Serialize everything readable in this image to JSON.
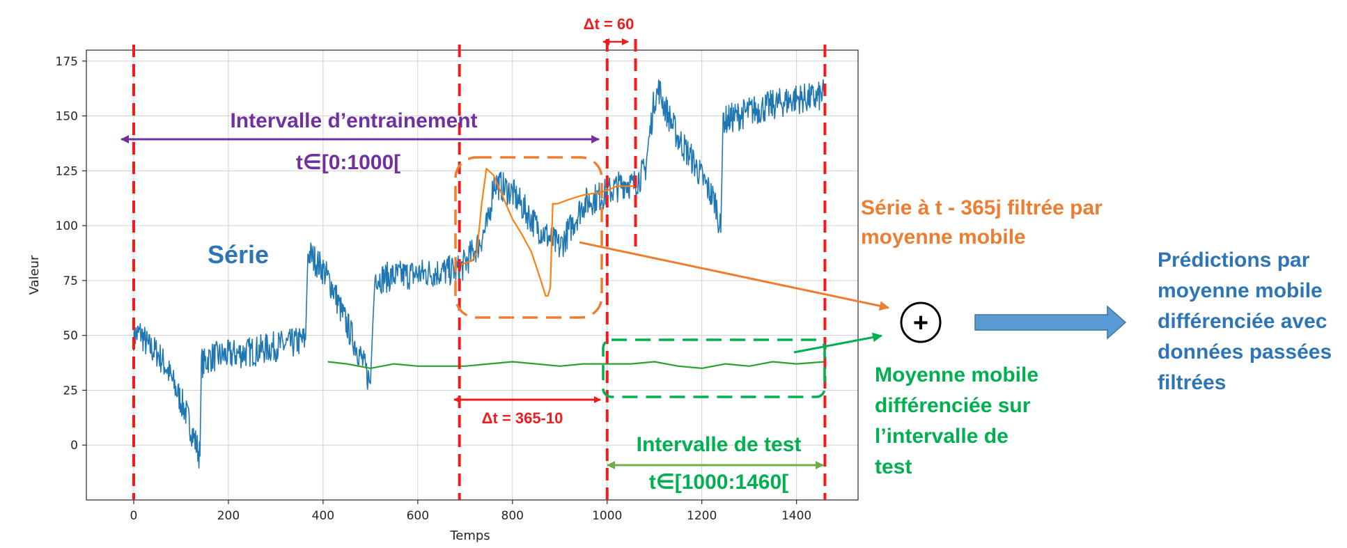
{
  "chart_data": {
    "type": "line",
    "title": "",
    "xlabel": "Temps",
    "ylabel": "Valeur",
    "xlim": [
      -100,
      1530
    ],
    "ylim": [
      -25,
      180
    ],
    "xticks": [
      0,
      200,
      400,
      600,
      800,
      1000,
      1200,
      1400
    ],
    "yticks": [
      0,
      25,
      50,
      75,
      100,
      125,
      150,
      175
    ],
    "grid": true,
    "series": [
      {
        "color": "#1f77b4",
        "x": [
          0,
          15,
          30,
          50,
          70,
          90,
          110,
          125,
          140,
          143,
          148,
          160,
          200,
          260,
          300,
          330,
          363,
          368,
          380,
          400,
          420,
          440,
          460,
          480,
          500,
          505,
          510,
          520,
          550,
          600,
          650,
          690,
          730,
          750,
          760,
          800,
          850,
          900,
          950,
          1000,
          1040,
          1055,
          1060,
          1080,
          1100,
          1110,
          1120,
          1150,
          1180,
          1210,
          1230,
          1240,
          1245,
          1250,
          1300,
          1350,
          1400,
          1440,
          1460
        ],
        "y": [
          50,
          51,
          45,
          42,
          35,
          25,
          15,
          5,
          -5,
          38,
          37,
          40,
          41,
          43,
          45,
          46,
          48,
          88,
          85,
          80,
          72,
          60,
          50,
          40,
          28,
          55,
          78,
          76,
          77,
          78,
          79,
          80,
          92,
          102,
          120,
          115,
          100,
          90,
          110,
          115,
          120,
          118,
          120,
          125,
          158,
          162,
          155,
          140,
          130,
          118,
          110,
          97,
          150,
          148,
          152,
          155,
          158,
          158,
          160
        ]
      },
      {
        "color": "#ff7f0e",
        "x": [
          688,
          700,
          715,
          725,
          735,
          745,
          760,
          780,
          800,
          820,
          840,
          860,
          870,
          875,
          880,
          885,
          895,
          920,
          950,
          980,
          1000,
          1020,
          1040,
          1060
        ],
        "y": [
          82,
          83,
          84,
          88,
          110,
          126,
          123,
          113,
          103,
          96,
          88,
          75,
          68,
          68,
          72,
          110,
          110,
          112,
          114,
          115,
          116,
          118,
          118,
          118
        ]
      },
      {
        "color": "#2ca02c",
        "x": [
          410,
          450,
          500,
          550,
          600,
          650,
          700,
          750,
          800,
          850,
          900,
          950,
          1000,
          1050,
          1100,
          1150,
          1200,
          1250,
          1300,
          1350,
          1400,
          1460
        ],
        "y": [
          38,
          37,
          35,
          37,
          36,
          36,
          36,
          37,
          38,
          37,
          36,
          37,
          37,
          37,
          38,
          36,
          35,
          37,
          36,
          38,
          37,
          38
        ]
      }
    ],
    "vlines": [
      0,
      688,
      1000,
      1060,
      1460
    ],
    "annotations": {
      "delta60": "Δt = 60",
      "train_interval": "Intervalle d’entrainement",
      "train_range": "t∈[0:1000[",
      "serie": "Série",
      "shifted_filtered": [
        "Série à t - 365j filtrée par",
        "moyenne mobile"
      ],
      "delta_offset": "Δt = 365-10",
      "test_interval": "Intervalle de test",
      "test_range": "t∈[1000:1460[",
      "diff_ma": [
        "Moyenne mobile",
        "différenciée sur",
        "l’intervalle de",
        "test"
      ],
      "prediction": [
        "Prédictions par",
        "moyenne mobile",
        "différenciée avec",
        "données passées",
        "filtrées"
      ],
      "plus": "+"
    },
    "colors": {
      "red": "#ee1c1c",
      "purple": "#7030a0",
      "blue_text": "#2e75b6",
      "orange": "#ed7d31",
      "green": "#00b050",
      "arrow_fill": "#5b9bd5",
      "arrow_stroke": "#41719c"
    }
  }
}
